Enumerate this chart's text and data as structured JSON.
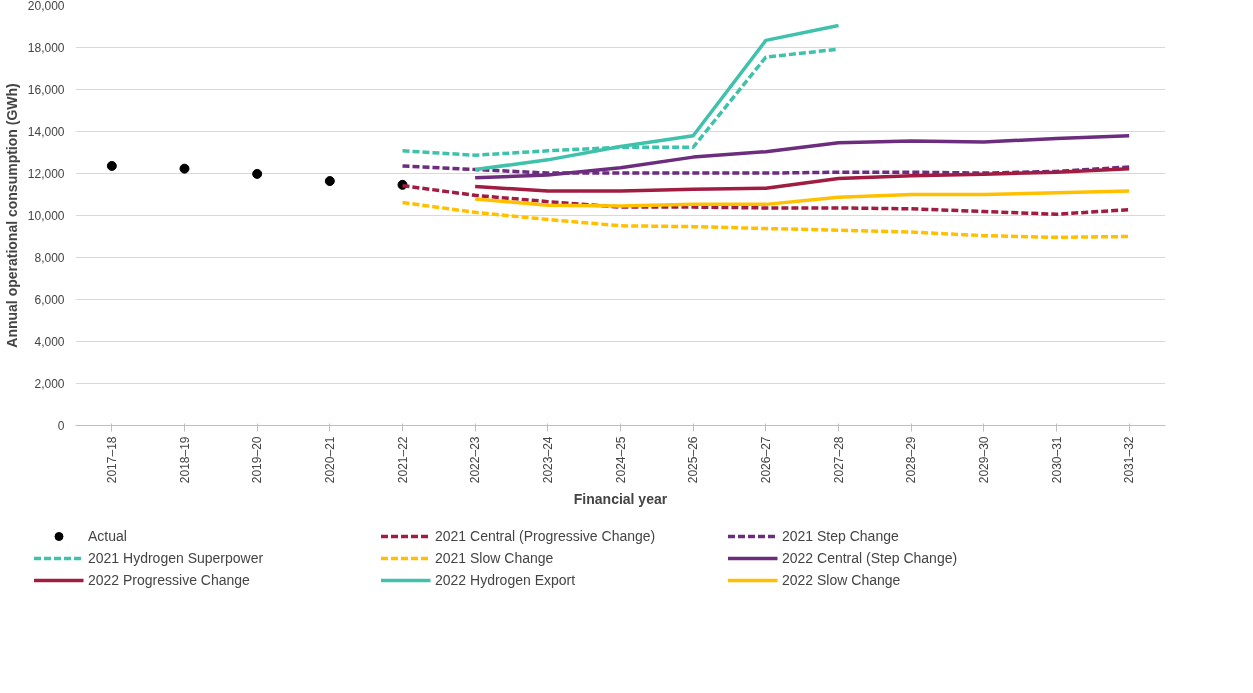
{
  "chart_data": {
    "type": "line",
    "xlabel": "Financial year",
    "ylabel": "Annual operational consumption (GWh)",
    "categories": [
      "2017–18",
      "2018–19",
      "2019–20",
      "2020–21",
      "2021–22",
      "2022–23",
      "2023–24",
      "2024–25",
      "2025–26",
      "2026–27",
      "2027–28",
      "2028–29",
      "2029–30",
      "2030–31",
      "2031–32"
    ],
    "ylim": [
      0,
      20000
    ],
    "yticks": [
      {
        "value": 0,
        "label": "0"
      },
      {
        "value": 2000,
        "label": "2,000"
      },
      {
        "value": 4000,
        "label": "4,000"
      },
      {
        "value": 6000,
        "label": "6,000"
      },
      {
        "value": 8000,
        "label": "8,000"
      },
      {
        "value": 10000,
        "label": "10,000"
      },
      {
        "value": 12000,
        "label": "12,000"
      },
      {
        "value": 14000,
        "label": "14,000"
      },
      {
        "value": 16000,
        "label": "16,000"
      },
      {
        "value": 18000,
        "label": "18,000"
      },
      {
        "value": 20000,
        "label": "20,000"
      }
    ],
    "grid": "y",
    "legend": "bottom",
    "series": [
      {
        "name": "Actual",
        "type": "scatter",
        "marker": "circle",
        "color": "#000000",
        "values": [
          12360,
          12230,
          11980,
          11640,
          11460,
          null,
          null,
          null,
          null,
          null,
          null,
          null,
          null,
          null,
          null
        ]
      },
      {
        "name": "2021 Central (Progressive Change)",
        "line_style": "dashed",
        "color": "#a01c40",
        "values": [
          null,
          null,
          null,
          null,
          11420,
          10960,
          10660,
          10400,
          10400,
          10360,
          10360,
          10320,
          10190,
          10060,
          10280
        ]
      },
      {
        "name": "2021 Step Change",
        "line_style": "dashed",
        "color": "#6c2d7e",
        "values": [
          null,
          null,
          null,
          null,
          12360,
          12190,
          12020,
          12020,
          12020,
          12020,
          12060,
          12060,
          12020,
          12100,
          12310
        ]
      },
      {
        "name": "2021 Hydrogen Superpower",
        "line_style": "dashed",
        "color": "#40c1ac",
        "values": [
          null,
          null,
          null,
          null,
          13080,
          12870,
          13080,
          13250,
          13250,
          17540,
          17920,
          null,
          null,
          null,
          null
        ]
      },
      {
        "name": "2021 Slow Change",
        "line_style": "dashed",
        "color": "#ffc000",
        "values": [
          null,
          null,
          null,
          null,
          10620,
          10150,
          9810,
          9510,
          9470,
          9380,
          9300,
          9210,
          9040,
          8960,
          9000
        ]
      },
      {
        "name": "2022 Central (Step Change)",
        "line_style": "solid",
        "color": "#6c2d7e",
        "values": [
          null,
          null,
          null,
          null,
          null,
          11800,
          11930,
          12270,
          12780,
          13040,
          13460,
          13550,
          13500,
          13670,
          13800
        ]
      },
      {
        "name": "2022 Progressive Change",
        "line_style": "solid",
        "color": "#a01c40",
        "values": [
          null,
          null,
          null,
          null,
          null,
          11380,
          11170,
          11170,
          11250,
          11300,
          11760,
          11890,
          11970,
          12060,
          12230
        ]
      },
      {
        "name": "2022 Hydrogen Export",
        "line_style": "solid",
        "color": "#40c1ac",
        "values": [
          null,
          null,
          null,
          null,
          null,
          12190,
          12650,
          13290,
          13800,
          18340,
          19050,
          null,
          null,
          null,
          null
        ]
      },
      {
        "name": "2022 Slow Change",
        "line_style": "solid",
        "color": "#ffc000",
        "values": [
          null,
          null,
          null,
          null,
          null,
          10790,
          10490,
          10450,
          10530,
          10530,
          10870,
          11000,
          11000,
          11080,
          11170
        ]
      }
    ]
  }
}
